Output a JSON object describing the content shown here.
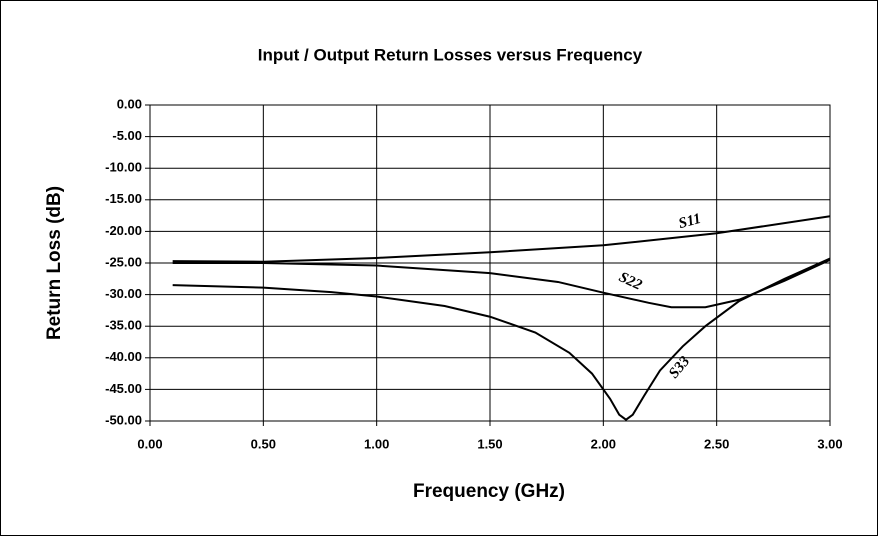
{
  "chart_data": {
    "type": "line",
    "title": "Input / Output Return Losses versus Frequency",
    "x_label": "Frequency (GHz)",
    "y_label": "Return Loss (dB)",
    "xlim": [
      0,
      3
    ],
    "ylim": [
      -50,
      0
    ],
    "xticks": [
      {
        "value": 0,
        "label": "0.00"
      },
      {
        "value": 0.5,
        "label": "0.50"
      },
      {
        "value": 1,
        "label": "1.00"
      },
      {
        "value": 1.5,
        "label": "1.50"
      },
      {
        "value": 2,
        "label": "2.00"
      },
      {
        "value": 2.5,
        "label": "2.50"
      },
      {
        "value": 3,
        "label": "3.00"
      }
    ],
    "yticks": [
      {
        "value": 0,
        "label": "0.00"
      },
      {
        "value": -5,
        "label": "-5.00"
      },
      {
        "value": -10,
        "label": "-10.00"
      },
      {
        "value": -15,
        "label": "-15.00"
      },
      {
        "value": -20,
        "label": "-20.00"
      },
      {
        "value": -25,
        "label": "-25.00"
      },
      {
        "value": -30,
        "label": "-30.00"
      },
      {
        "value": -35,
        "label": "-35.00"
      },
      {
        "value": -40,
        "label": "-40.00"
      },
      {
        "value": -45,
        "label": "-45.00"
      },
      {
        "value": -50,
        "label": "-50.00"
      }
    ],
    "grid": true,
    "series": [
      {
        "name": "S11",
        "color": "#000000",
        "x": [
          0.1,
          0.5,
          1.0,
          1.5,
          2.0,
          2.5,
          3.0
        ],
        "values": [
          -24.7,
          -24.8,
          -24.2,
          -23.3,
          -22.2,
          -20.3,
          -17.6
        ]
      },
      {
        "name": "S22",
        "color": "#000000",
        "x": [
          0.1,
          0.5,
          1.0,
          1.5,
          1.8,
          2.0,
          2.2,
          2.3,
          2.45,
          2.6,
          2.8,
          3.0
        ],
        "values": [
          -25.0,
          -25.0,
          -25.4,
          -26.6,
          -28.0,
          -29.7,
          -31.3,
          -32.0,
          -32.0,
          -30.8,
          -27.8,
          -24.5
        ]
      },
      {
        "name": "S33",
        "color": "#000000",
        "x": [
          0.1,
          0.5,
          0.8,
          1.0,
          1.3,
          1.5,
          1.7,
          1.85,
          1.95,
          2.03,
          2.07,
          2.1,
          2.13,
          2.18,
          2.25,
          2.35,
          2.45,
          2.6,
          2.8,
          3.0
        ],
        "values": [
          -28.5,
          -28.9,
          -29.6,
          -30.3,
          -31.8,
          -33.5,
          -36.0,
          -39.2,
          -42.5,
          -46.5,
          -49.0,
          -49.8,
          -49.0,
          -46.0,
          -42.0,
          -38.2,
          -35.0,
          -31.0,
          -27.5,
          -24.3
        ]
      }
    ]
  }
}
